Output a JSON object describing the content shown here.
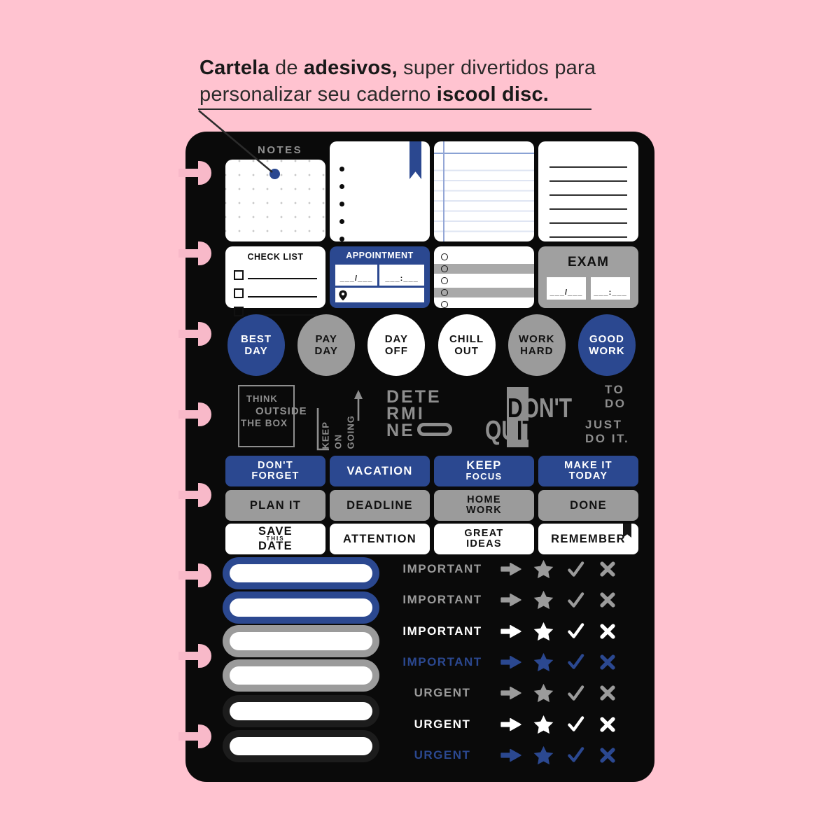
{
  "caption": {
    "b1": "Cartela",
    "t1": " de ",
    "b2": "adesivos,",
    "t2": " super divertidos para",
    "t3": "personalizar seu caderno ",
    "b3": "iscool disc."
  },
  "colors": {
    "pink_background": "#ffc3d0",
    "disc_pink": "#f8b9c9",
    "sheet_black": "#0a0a0a",
    "blue": "#2b4890",
    "gray": "#9b9b9b",
    "white": "#ffffff",
    "quote_gray": "#8e8e8e",
    "dark_ring": "#1c1c1c",
    "note_dot_blue": "#2b4890"
  },
  "icons": {
    "bookmark": "bookmark-ribbon",
    "pin": "location-pin",
    "checkbox": "empty-checkbox",
    "radio": "empty-circle",
    "arrow": "arrow-right",
    "star": "star",
    "check": "checkmark",
    "x": "x-mark",
    "keep_going_arrow": "arrow-up-step"
  },
  "sheet": {
    "notes_label": "NOTES",
    "checklist": {
      "title": "CHECK LIST"
    },
    "appointment": {
      "title": "APPOINTMENT",
      "date_blank": "___/___",
      "time_blank": "___:___"
    },
    "exam": {
      "title": "EXAM",
      "date_blank": "___/___",
      "time_blank": "___:___"
    },
    "circles": [
      {
        "line1": "BEST",
        "line2": "DAY",
        "bg": "#2b4890",
        "fg": "#ffffff"
      },
      {
        "line1": "PAY",
        "line2": "DAY",
        "bg": "#9b9b9b",
        "fg": "#111111"
      },
      {
        "line1": "DAY",
        "line2": "OFF",
        "bg": "#ffffff",
        "fg": "#111111"
      },
      {
        "line1": "CHILL",
        "line2": "OUT",
        "bg": "#ffffff",
        "fg": "#111111"
      },
      {
        "line1": "WORK",
        "line2": "HARD",
        "bg": "#9b9b9b",
        "fg": "#111111"
      },
      {
        "line1": "GOOD",
        "line2": "WORK",
        "bg": "#2b4890",
        "fg": "#ffffff"
      }
    ],
    "quotes": {
      "think_box": {
        "l1": "THINK",
        "l2": "OUTSIDE",
        "l3": "THE BOX"
      },
      "keep_going": {
        "l1": "KEEP",
        "l2": "ON",
        "l3": "GOING"
      },
      "determined": {
        "l1": "DETE",
        "l2": "RMI",
        "l3": "NE"
      },
      "dont_quit": {
        "d1": "D",
        "d2": "ON'T",
        "q1": "QU",
        "q2": "IT"
      },
      "to_do": {
        "l1": "TO",
        "l2": "DO"
      },
      "just_do_it": {
        "l1": "JUST",
        "l2": "DO IT."
      }
    },
    "label_rows": {
      "blue": [
        {
          "l1": "DON'T",
          "l2": "FORGET"
        },
        {
          "l1": "VACATION"
        },
        {
          "l1": "KEEP",
          "l2": "FOCUS"
        },
        {
          "l1": "MAKE IT",
          "l2": "TODAY"
        }
      ],
      "gray": [
        {
          "l1": "PLAN IT"
        },
        {
          "l1": "DEADLINE"
        },
        {
          "l1": "HOME",
          "l2": "WORK"
        },
        {
          "l1": "DONE"
        }
      ],
      "white": [
        {
          "l1": "SAVE",
          "l2": "THIS",
          "l3": "DATE"
        },
        {
          "l1": "ATTENTION"
        },
        {
          "l1": "GREAT",
          "l2": "IDEAS"
        },
        {
          "l1": "REMEMBER"
        }
      ]
    },
    "pills": [
      {
        "ring": "#2b4890"
      },
      {
        "ring": "#2b4890"
      },
      {
        "ring": "#9b9b9b"
      },
      {
        "ring": "#9b9b9b"
      },
      {
        "ring": "#1c1c1c"
      },
      {
        "ring": "#1c1c1c"
      }
    ],
    "task_rows": [
      {
        "label": "IMPORTANT",
        "color": "#9b9b9b"
      },
      {
        "label": "IMPORTANT",
        "color": "#9b9b9b"
      },
      {
        "label": "IMPORTANT",
        "color": "#ffffff"
      },
      {
        "label": "IMPORTANT",
        "color": "#2b4890"
      },
      {
        "label": "URGENT",
        "color": "#9b9b9b"
      },
      {
        "label": "URGENT",
        "color": "#ffffff"
      },
      {
        "label": "URGENT",
        "color": "#2b4890"
      }
    ]
  }
}
